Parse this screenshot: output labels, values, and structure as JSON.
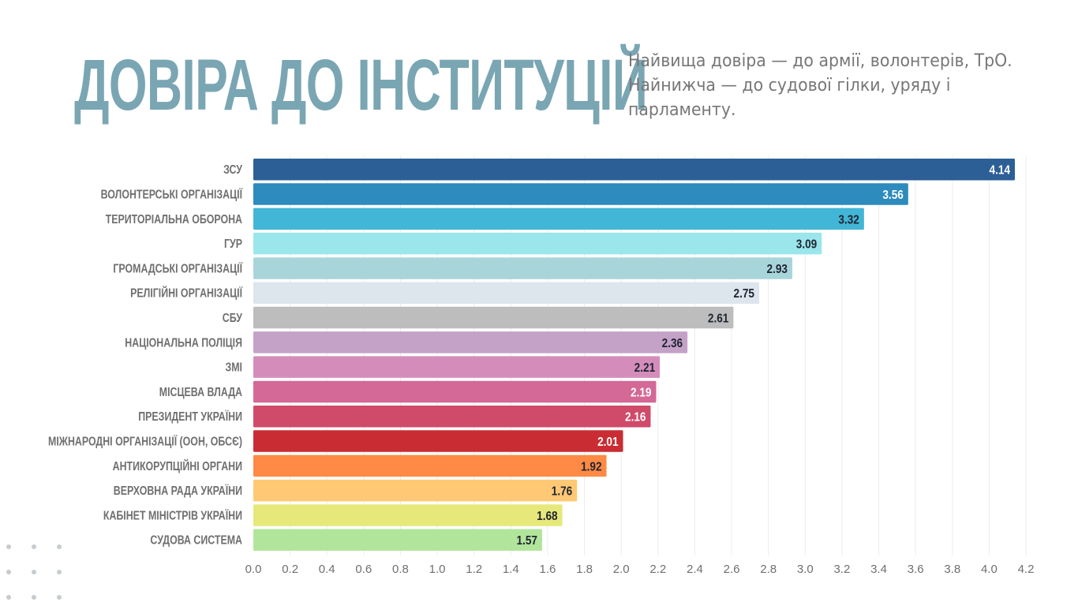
{
  "header": {
    "title": "ДОВІРА ДО ІНСТИТУЦІЙ",
    "subtitle_lines": [
      "Найвища довіра — до армії, волонтерів, ТрО.",
      "Найнижча — до судової гілки, уряду і",
      "парламенту."
    ]
  },
  "decoration": {
    "dots_icon": "dot-grid-icon"
  },
  "chart_data": {
    "type": "bar",
    "orientation": "horizontal",
    "title": "ДОВІРА ДО ІНСТИТУЦІЙ",
    "xlabel": "",
    "ylabel": "",
    "xlim": [
      0,
      4.2
    ],
    "grid": true,
    "legend": "none",
    "ticks": [
      "0.0",
      "0.2",
      "0.4",
      "0.6",
      "0.8",
      "1.0",
      "1.2",
      "1.4",
      "1.6",
      "1.8",
      "2.0",
      "2.2",
      "2.4",
      "2.6",
      "2.8",
      "3.0",
      "3.2",
      "3.4",
      "3.6",
      "3.8",
      "4.0",
      "4.2"
    ],
    "categories": [
      "ЗСУ",
      "ВОЛОНТЕРСЬКІ ОРГАНІЗАЦІЇ",
      "ТЕРИТОРІАЛЬНА ОБОРОНА",
      "ГУР",
      "ГРОМАДСЬКІ ОРГАНІЗАЦІЇ",
      "РЕЛІГІЙНІ ОРГАНІЗАЦІЇ",
      "СБУ",
      "НАЦІОНАЛЬНА ПОЛІЦІЯ",
      "ЗМІ",
      "МІСЦЕВА ВЛАДА",
      "ПРЕЗИДЕНТ УКРАЇНИ",
      "МІЖНАРОДНІ ОРГАНІЗАЦІЇ (ООН, ОБСЄ)",
      "АНТИКОРУПЦІЙНІ ОРГАНИ",
      "ВЕРХОВНА РАДА УКРАЇНИ",
      "КАБІНЕТ МІНІСТРІВ УКРАЇНИ",
      "СУДОВА СИСТЕМА"
    ],
    "values": [
      4.14,
      3.56,
      3.32,
      3.09,
      2.93,
      2.75,
      2.61,
      2.36,
      2.21,
      2.19,
      2.16,
      2.01,
      1.92,
      1.76,
      1.68,
      1.57
    ],
    "value_labels": [
      "4.14",
      "3.56",
      "3.32",
      "3.09",
      "2.93",
      "2.75",
      "2.61",
      "2.36",
      "2.21",
      "2.19",
      "2.16",
      "2.01",
      "1.92",
      "1.76",
      "1.68",
      "1.57"
    ],
    "colors": [
      "#2d5f97",
      "#2d8bbd",
      "#42b6d6",
      "#9ae6eb",
      "#a8d5da",
      "#dde5ed",
      "#bdbdbd",
      "#c4a1c7",
      "#d48dbb",
      "#d46896",
      "#d04a6a",
      "#c92d33",
      "#ff8a45",
      "#ffc875",
      "#e6e87a",
      "#b2e59c"
    ],
    "label_colors": [
      "#ffffff",
      "#ffffff",
      "#1e2430",
      "#1e2430",
      "#1e2430",
      "#1e2430",
      "#1e2430",
      "#1e2430",
      "#1e2430",
      "#ffffff",
      "#ffffff",
      "#ffffff",
      "#1e2430",
      "#1e2430",
      "#1e2430",
      "#1e2430"
    ]
  }
}
